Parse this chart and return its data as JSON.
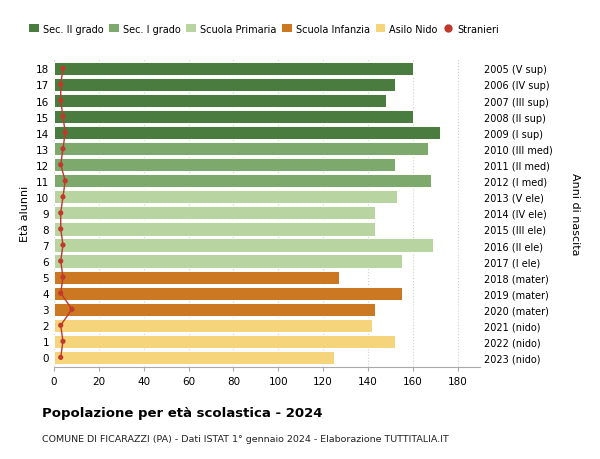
{
  "ages": [
    0,
    1,
    2,
    3,
    4,
    5,
    6,
    7,
    8,
    9,
    10,
    11,
    12,
    13,
    14,
    15,
    16,
    17,
    18
  ],
  "labels_right": [
    "2023 (nido)",
    "2022 (nido)",
    "2021 (nido)",
    "2020 (mater)",
    "2019 (mater)",
    "2018 (mater)",
    "2017 (I ele)",
    "2016 (II ele)",
    "2015 (III ele)",
    "2014 (IV ele)",
    "2013 (V ele)",
    "2012 (I med)",
    "2011 (II med)",
    "2010 (III med)",
    "2009 (I sup)",
    "2008 (II sup)",
    "2007 (III sup)",
    "2006 (IV sup)",
    "2005 (V sup)"
  ],
  "values": [
    125,
    152,
    142,
    143,
    155,
    127,
    155,
    169,
    143,
    143,
    153,
    168,
    152,
    167,
    172,
    160,
    148,
    152,
    160
  ],
  "stranieri": [
    3,
    4,
    3,
    8,
    3,
    4,
    3,
    4,
    3,
    3,
    4,
    5,
    3,
    4,
    5,
    4,
    3,
    3,
    4
  ],
  "bar_colors": [
    "#f5d47c",
    "#f5d47c",
    "#f5d47c",
    "#cc7722",
    "#cc7722",
    "#cc7722",
    "#b8d4a0",
    "#b8d4a0",
    "#b8d4a0",
    "#b8d4a0",
    "#b8d4a0",
    "#7daa6c",
    "#7daa6c",
    "#7daa6c",
    "#4a7c3f",
    "#4a7c3f",
    "#4a7c3f",
    "#4a7c3f",
    "#4a7c3f"
  ],
  "legend_colors": [
    "#4a7c3f",
    "#7daa6c",
    "#b8d4a0",
    "#cc7722",
    "#f5d47c",
    "#c0392b"
  ],
  "legend_labels": [
    "Sec. II grado",
    "Sec. I grado",
    "Scuola Primaria",
    "Scuola Infanzia",
    "Asilo Nido",
    "Stranieri"
  ],
  "ylabel": "Età alunni",
  "ylabel_right": "Anni di nascita",
  "title": "Popolazione per età scolastica - 2024",
  "subtitle": "COMUNE DI FICARAZZI (PA) - Dati ISTAT 1° gennaio 2024 - Elaborazione TUTTITALIA.IT",
  "xlim": [
    0,
    190
  ],
  "xticks": [
    0,
    20,
    40,
    60,
    80,
    100,
    120,
    140,
    160,
    180
  ],
  "background_color": "#ffffff",
  "grid_color": "#d0d0d0",
  "stranieri_color": "#c0392b"
}
